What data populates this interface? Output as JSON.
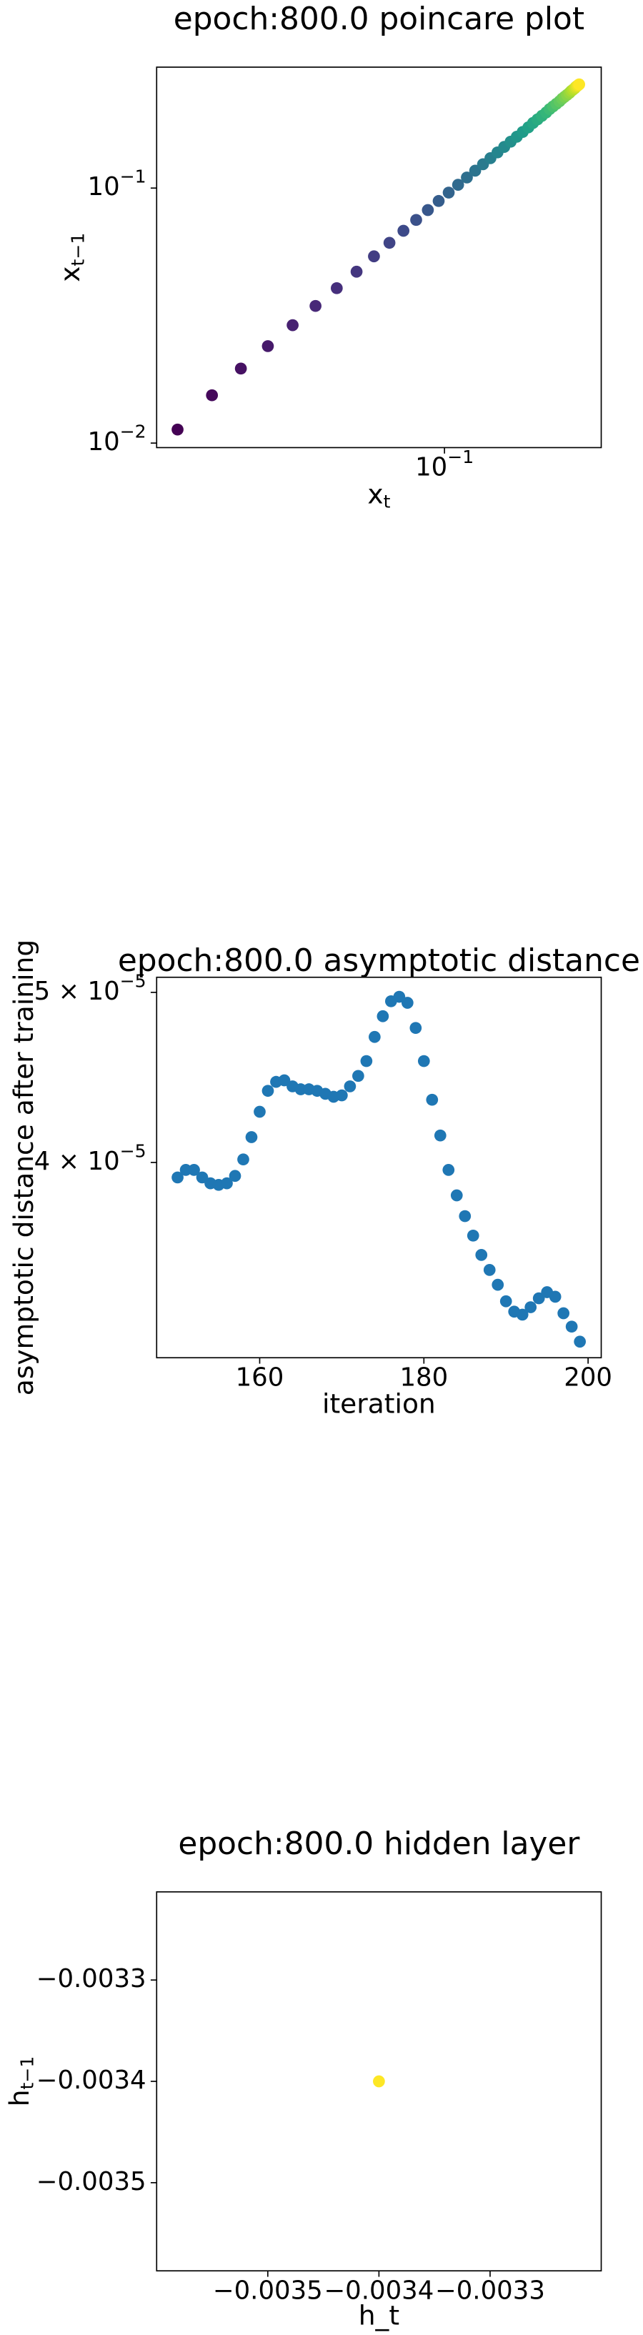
{
  "chart_data": [
    {
      "type": "scatter",
      "title": "epoch:800.0 poincare plot",
      "x_label": {
        "text": "x",
        "subscript": "t"
      },
      "y_label": {
        "text": "x",
        "subscript": "t−1"
      },
      "xscale": "log",
      "yscale": "log",
      "xlim": [
        0.0133,
        0.3
      ],
      "ylim": [
        0.0096,
        0.298
      ],
      "xticks": [
        {
          "value": 0.1,
          "label": "10",
          "exponent": "−1"
        }
      ],
      "yticks": [
        {
          "value": 0.01,
          "label": "10",
          "exponent": "−2"
        },
        {
          "value": 0.1,
          "label": "10",
          "exponent": "−1"
        }
      ],
      "colormap": "viridis",
      "x": [
        0.0154,
        0.0196,
        0.024,
        0.029,
        0.0345,
        0.0405,
        0.047,
        0.054,
        0.061,
        0.068,
        0.075,
        0.082,
        0.089,
        0.096,
        0.103,
        0.11,
        0.117,
        0.124,
        0.131,
        0.138,
        0.145,
        0.152,
        0.159,
        0.166,
        0.173,
        0.18,
        0.186,
        0.192,
        0.198,
        0.204,
        0.209,
        0.214,
        0.219,
        0.224,
        0.228,
        0.232,
        0.236,
        0.24,
        0.243,
        0.246,
        0.249,
        0.251,
        0.253,
        0.255,
        0.257
      ],
      "y": [
        0.0113,
        0.0154,
        0.0196,
        0.024,
        0.029,
        0.0345,
        0.0405,
        0.047,
        0.054,
        0.061,
        0.068,
        0.075,
        0.082,
        0.089,
        0.096,
        0.103,
        0.11,
        0.117,
        0.124,
        0.131,
        0.138,
        0.145,
        0.152,
        0.159,
        0.166,
        0.173,
        0.18,
        0.186,
        0.192,
        0.198,
        0.204,
        0.209,
        0.214,
        0.219,
        0.224,
        0.228,
        0.232,
        0.236,
        0.24,
        0.243,
        0.246,
        0.249,
        0.251,
        0.253,
        0.255
      ]
    },
    {
      "type": "scatter",
      "title": "epoch:800.0 asymptotic distance",
      "x_label": "iteration",
      "y_label": "asymptotic distance after training",
      "xscale": "linear",
      "yscale": "log",
      "xlim": [
        147.45,
        201.6
      ],
      "ylim": [
        3.096e-05,
        5.1e-05
      ],
      "xticks": [
        160,
        180,
        200
      ],
      "yticks": [
        {
          "value": 4e-05,
          "label": "4 × 10",
          "exponent": "−5"
        },
        {
          "value": 5e-05,
          "label": "5 × 10",
          "exponent": "−5"
        }
      ],
      "color": "#1f77b4",
      "x": [
        150,
        151,
        152,
        153,
        154,
        155,
        156,
        157,
        158,
        159,
        160,
        161,
        162,
        163,
        164,
        165,
        166,
        167,
        168,
        169,
        170,
        171,
        172,
        173,
        174,
        175,
        176,
        177,
        178,
        179,
        180,
        181,
        182,
        183,
        184,
        185,
        186,
        187,
        188,
        189,
        190,
        191,
        192,
        193,
        194,
        195,
        196,
        197,
        198,
        199
      ],
      "y": [
        3.922e-05,
        3.961e-05,
        3.961e-05,
        3.922e-05,
        3.892e-05,
        3.884e-05,
        3.892e-05,
        3.93e-05,
        4.016e-05,
        4.135e-05,
        4.275e-05,
        4.394e-05,
        4.446e-05,
        4.455e-05,
        4.42e-05,
        4.403e-05,
        4.403e-05,
        4.394e-05,
        4.377e-05,
        4.36e-05,
        4.368e-05,
        4.42e-05,
        4.481e-05,
        4.569e-05,
        4.716e-05,
        4.846e-05,
        4.942e-05,
        4.971e-05,
        4.932e-05,
        4.772e-05,
        4.569e-05,
        4.343e-05,
        4.144e-05,
        3.961e-05,
        3.831e-05,
        3.728e-05,
        3.634e-05,
        3.543e-05,
        3.474e-05,
        3.407e-05,
        3.334e-05,
        3.289e-05,
        3.276e-05,
        3.308e-05,
        3.347e-05,
        3.374e-05,
        3.354e-05,
        3.282e-05,
        3.225e-05,
        3.162e-05
      ]
    },
    {
      "type": "scatter",
      "title": "epoch:800.0 hidden layer",
      "x_label": "h_t",
      "y_label": {
        "text": "h",
        "subscript": "t−1"
      },
      "xscale": "linear",
      "yscale": "linear",
      "xlim": [
        -0.0036,
        -0.0032
      ],
      "ylim": [
        -0.003587,
        -0.003213
      ],
      "xticks": [
        {
          "value": -0.0035,
          "label": "−0.0035"
        },
        {
          "value": -0.0034,
          "label": "−0.0034"
        },
        {
          "value": -0.0033,
          "label": "−0.0033"
        }
      ],
      "yticks": [
        {
          "value": -0.0035,
          "label": "−0.0035"
        },
        {
          "value": -0.0034,
          "label": "−0.0034"
        },
        {
          "value": -0.0033,
          "label": "−0.0033"
        }
      ],
      "color": "#fde725",
      "x": [
        -0.0034
      ],
      "y": [
        -0.0034
      ]
    }
  ]
}
